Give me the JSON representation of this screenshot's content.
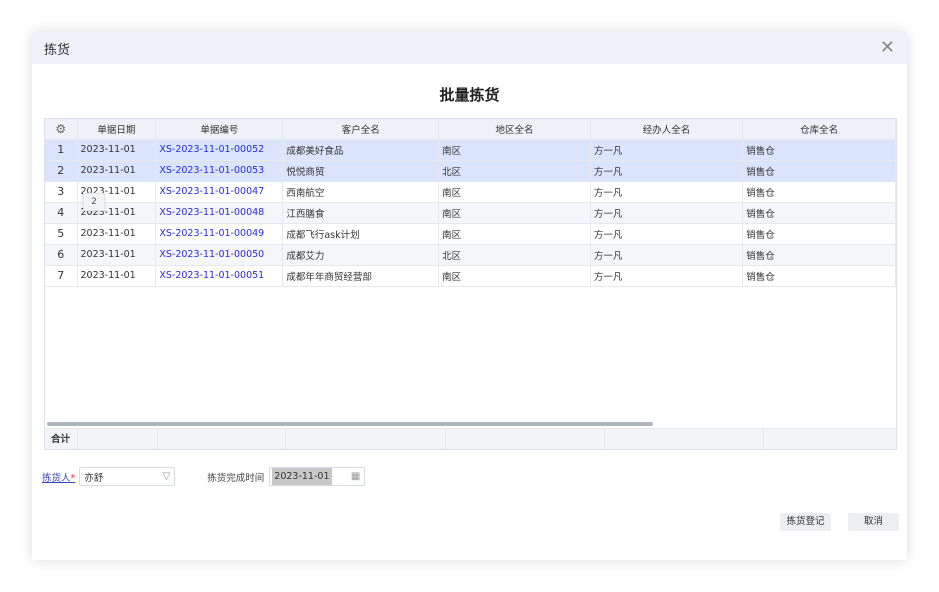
{
  "dialog": {
    "title": "拣货",
    "heading": "批量拣货"
  },
  "table": {
    "columns": [
      "单据日期",
      "单据编号",
      "客户全名",
      "地区全名",
      "经办人全名",
      "仓库全名"
    ],
    "rows": [
      {
        "idx": "1",
        "date": "2023-11-01",
        "no": "XS-2023-11-01-00052",
        "customer": "成都美好食品",
        "region": "南区",
        "handler": "方一凡",
        "warehouse": "销售仓",
        "selected": true
      },
      {
        "idx": "2",
        "date": "2023-11-01",
        "no": "XS-2023-11-01-00053",
        "customer": "悦悦商贸",
        "region": "北区",
        "handler": "方一凡",
        "warehouse": "销售仓",
        "selected": true
      },
      {
        "idx": "3",
        "date": "2023-11-01",
        "no": "XS-2023-11-01-00047",
        "customer": "西南航空",
        "region": "南区",
        "handler": "方一凡",
        "warehouse": "销售仓",
        "selected": false
      },
      {
        "idx": "4",
        "date": "2023-11-01",
        "no": "XS-2023-11-01-00048",
        "customer": "江西膳食",
        "region": "南区",
        "handler": "方一凡",
        "warehouse": "销售仓",
        "selected": false
      },
      {
        "idx": "5",
        "date": "2023-11-01",
        "no": "XS-2023-11-01-00049",
        "customer": "成都飞行ask计划",
        "region": "南区",
        "handler": "方一凡",
        "warehouse": "销售仓",
        "selected": false
      },
      {
        "idx": "6",
        "date": "2023-11-01",
        "no": "XS-2023-11-01-00050",
        "customer": "成都艾力",
        "region": "北区",
        "handler": "方一凡",
        "warehouse": "销售仓",
        "selected": false
      },
      {
        "idx": "7",
        "date": "2023-11-01",
        "no": "XS-2023-11-01-00051",
        "customer": "成都年年商贸经营部",
        "region": "南区",
        "handler": "方一凡",
        "warehouse": "销售仓",
        "selected": false
      }
    ],
    "tooltip": "2",
    "summary_label": "合计"
  },
  "form": {
    "picker_label": "拣货人",
    "required_mark": "*",
    "picker_value": "亦舒",
    "time_label": "拣货完成时间",
    "time_value": "2023-11-01"
  },
  "buttons": {
    "register": "拣货登记",
    "cancel": "取消"
  }
}
